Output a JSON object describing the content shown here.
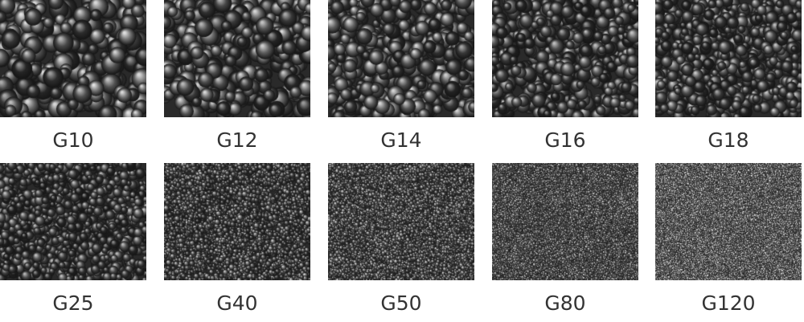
{
  "samples": [
    {
      "label": "G10"
    },
    {
      "label": "G12"
    },
    {
      "label": "G14"
    },
    {
      "label": "G16"
    },
    {
      "label": "G18"
    },
    {
      "label": "G25"
    },
    {
      "label": "G40"
    },
    {
      "label": "G50"
    },
    {
      "label": "G80"
    },
    {
      "label": "G120"
    }
  ]
}
